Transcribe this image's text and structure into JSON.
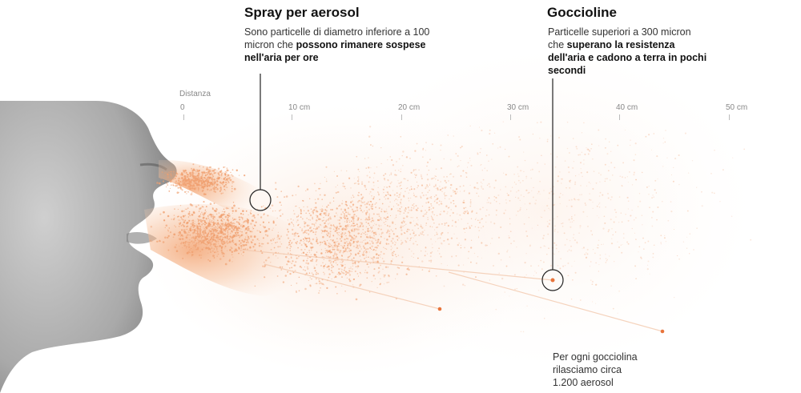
{
  "aerosol": {
    "title": "Spray per aerosol",
    "desc_plain": "Sono particelle di diametro inferiore a 100 micron che ",
    "desc_bold": "possono rimanere sospese nell'aria per ore"
  },
  "droplets": {
    "title": "Goccioline",
    "desc_plain": "Particelle superiori a 300 micron che ",
    "desc_bold": "superano la resistenza dell'aria e cadono a terra in pochi secondi"
  },
  "axis": {
    "title": "Distanza",
    "ticks": [
      "0",
      "10 cm",
      "20 cm",
      "30 cm",
      "40 cm",
      "50 cm"
    ]
  },
  "footnote": {
    "line1": "Per ogni gocciolina",
    "line2": "rilasciamo circa",
    "line3": "1.200 aerosol"
  },
  "colors": {
    "aerosol": "#f0a070",
    "droplet": "#e8743b",
    "leader": "#222222",
    "face": "#9a9a9a"
  }
}
